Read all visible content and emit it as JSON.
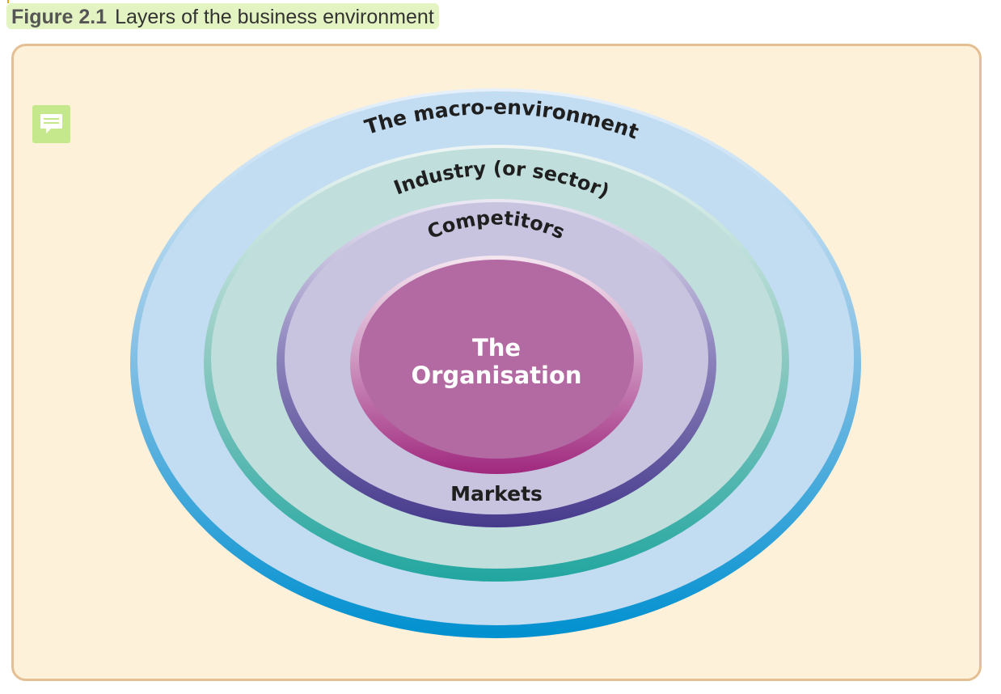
{
  "caption": {
    "number": "Figure 2.1",
    "title": "Layers of the business environment"
  },
  "note_icon": "comment-icon",
  "layers": {
    "macro": "The macro-environment",
    "industry": "Industry (or sector)",
    "competitors": "Competitors",
    "markets": "Markets",
    "organisation_line1": "The",
    "organisation_line2": "Organisation"
  },
  "colors": {
    "panel_bg": "#fdf1d9",
    "panel_border": "#e3bf93",
    "macro": "#c2dcf1",
    "industry": "#c0dedb",
    "competitors": "#c8c4e0",
    "organisation": "#b36aa2",
    "caption_bg": "#e4f3c2"
  }
}
